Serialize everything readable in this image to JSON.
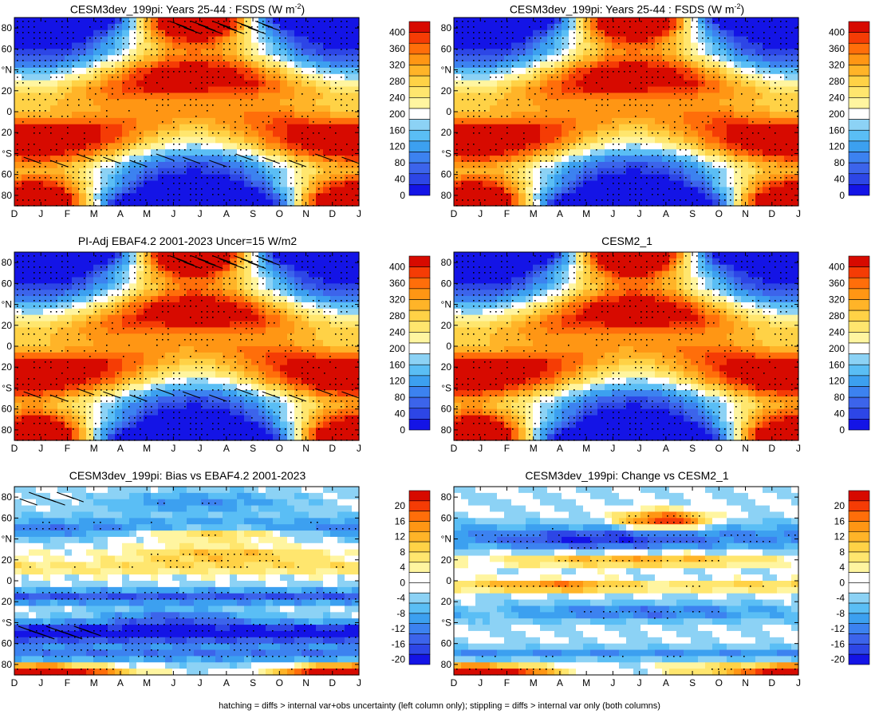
{
  "figure": {
    "footer": "hatching = diffs > internal var+obs uncertainty (left column only); stippling = diffs > internal var only (both columns)"
  },
  "months": [
    "D",
    "J",
    "F",
    "M",
    "A",
    "M",
    "J",
    "J",
    "A",
    "S",
    "O",
    "N",
    "D",
    "J"
  ],
  "lat_ticks": [
    "80",
    "60",
    "°N",
    "20",
    "0",
    "20",
    "°S",
    "60",
    "80"
  ],
  "colors": {
    "fsds_scale": [
      "#1414e6",
      "#2d46e6",
      "#3c64eb",
      "#3c82f0",
      "#3ca0f0",
      "#5abef5",
      "#8cd2f5",
      "#ffffff",
      "#fff5a0",
      "#ffe66e",
      "#ffd246",
      "#ffb428",
      "#ff9614",
      "#ff6e0a",
      "#f53c05",
      "#d70a00"
    ],
    "diff_scale": [
      "#1414e6",
      "#2d46e6",
      "#3c64eb",
      "#3c82f0",
      "#3ca0f0",
      "#5abef5",
      "#8cd2f5",
      "#ffffff",
      "#ffffff",
      "#fff5a0",
      "#ffe66e",
      "#ffd246",
      "#ffb428",
      "#ff9614",
      "#ff6e0a",
      "#f53c05",
      "#d70a00"
    ]
  },
  "chart_data": [
    {
      "type": "heatmap",
      "title": "CESM3dev_199pi: Years 25-44 : FSDS (W m",
      "title_sup": "-2",
      "title_end": ")",
      "field": "fsds",
      "hatch": "fsds",
      "stipple": "dense",
      "colorbar_ticks": [
        "400",
        "360",
        "320",
        "280",
        "240",
        "200",
        "160",
        "120",
        "80",
        "40",
        "0"
      ],
      "colorbar_range": [
        0,
        420
      ],
      "colorbar_interval": 20
    },
    {
      "type": "heatmap",
      "title": "CESM3dev_199pi: Years 25-44 : FSDS (W m",
      "title_sup": "-2",
      "title_end": ")",
      "field": "fsds",
      "hatch": "none",
      "stipple": "dense",
      "colorbar_ticks": [
        "400",
        "360",
        "320",
        "280",
        "240",
        "200",
        "160",
        "120",
        "80",
        "40",
        "0"
      ],
      "colorbar_range": [
        0,
        420
      ],
      "colorbar_interval": 20
    },
    {
      "type": "heatmap",
      "title": "PI-Adj EBAF4.2 2001-2023 Uncer=15 W/m2",
      "title_sup": "",
      "title_end": "",
      "field": "fsds_obs",
      "hatch": "fsds",
      "stipple": "dense",
      "colorbar_ticks": [
        "400",
        "360",
        "320",
        "280",
        "240",
        "200",
        "160",
        "120",
        "80",
        "40",
        "0"
      ],
      "colorbar_range": [
        0,
        420
      ],
      "colorbar_interval": 20
    },
    {
      "type": "heatmap",
      "title": "CESM2_1",
      "title_sup": "",
      "title_end": "",
      "field": "fsds_obs",
      "hatch": "none",
      "stipple": "dense",
      "colorbar_ticks": [
        "400",
        "360",
        "320",
        "280",
        "240",
        "200",
        "160",
        "120",
        "80",
        "40",
        "0"
      ],
      "colorbar_range": [
        0,
        420
      ],
      "colorbar_interval": 20
    },
    {
      "type": "heatmap",
      "title": "CESM3dev_199pi: Bias vs EBAF4.2 2001-2023",
      "title_sup": "",
      "title_end": "",
      "field": "bias",
      "hatch": "bias",
      "stipple": "sparse",
      "colorbar_ticks": [
        "20",
        "16",
        "12",
        "8",
        "4",
        "0",
        "-4",
        "-8",
        "-12",
        "-16",
        "-20"
      ],
      "colorbar_range": [
        -22,
        22
      ],
      "colorbar_interval": 2
    },
    {
      "type": "heatmap",
      "title": "CESM3dev_199pi: Change vs CESM2_1",
      "title_sup": "",
      "title_end": "",
      "field": "change",
      "hatch": "none",
      "stipple": "sparse",
      "colorbar_ticks": [
        "20",
        "16",
        "12",
        "8",
        "4",
        "0",
        "-4",
        "-8",
        "-12",
        "-16",
        "-20"
      ],
      "colorbar_range": [
        -22,
        22
      ],
      "colorbar_interval": 2
    }
  ]
}
